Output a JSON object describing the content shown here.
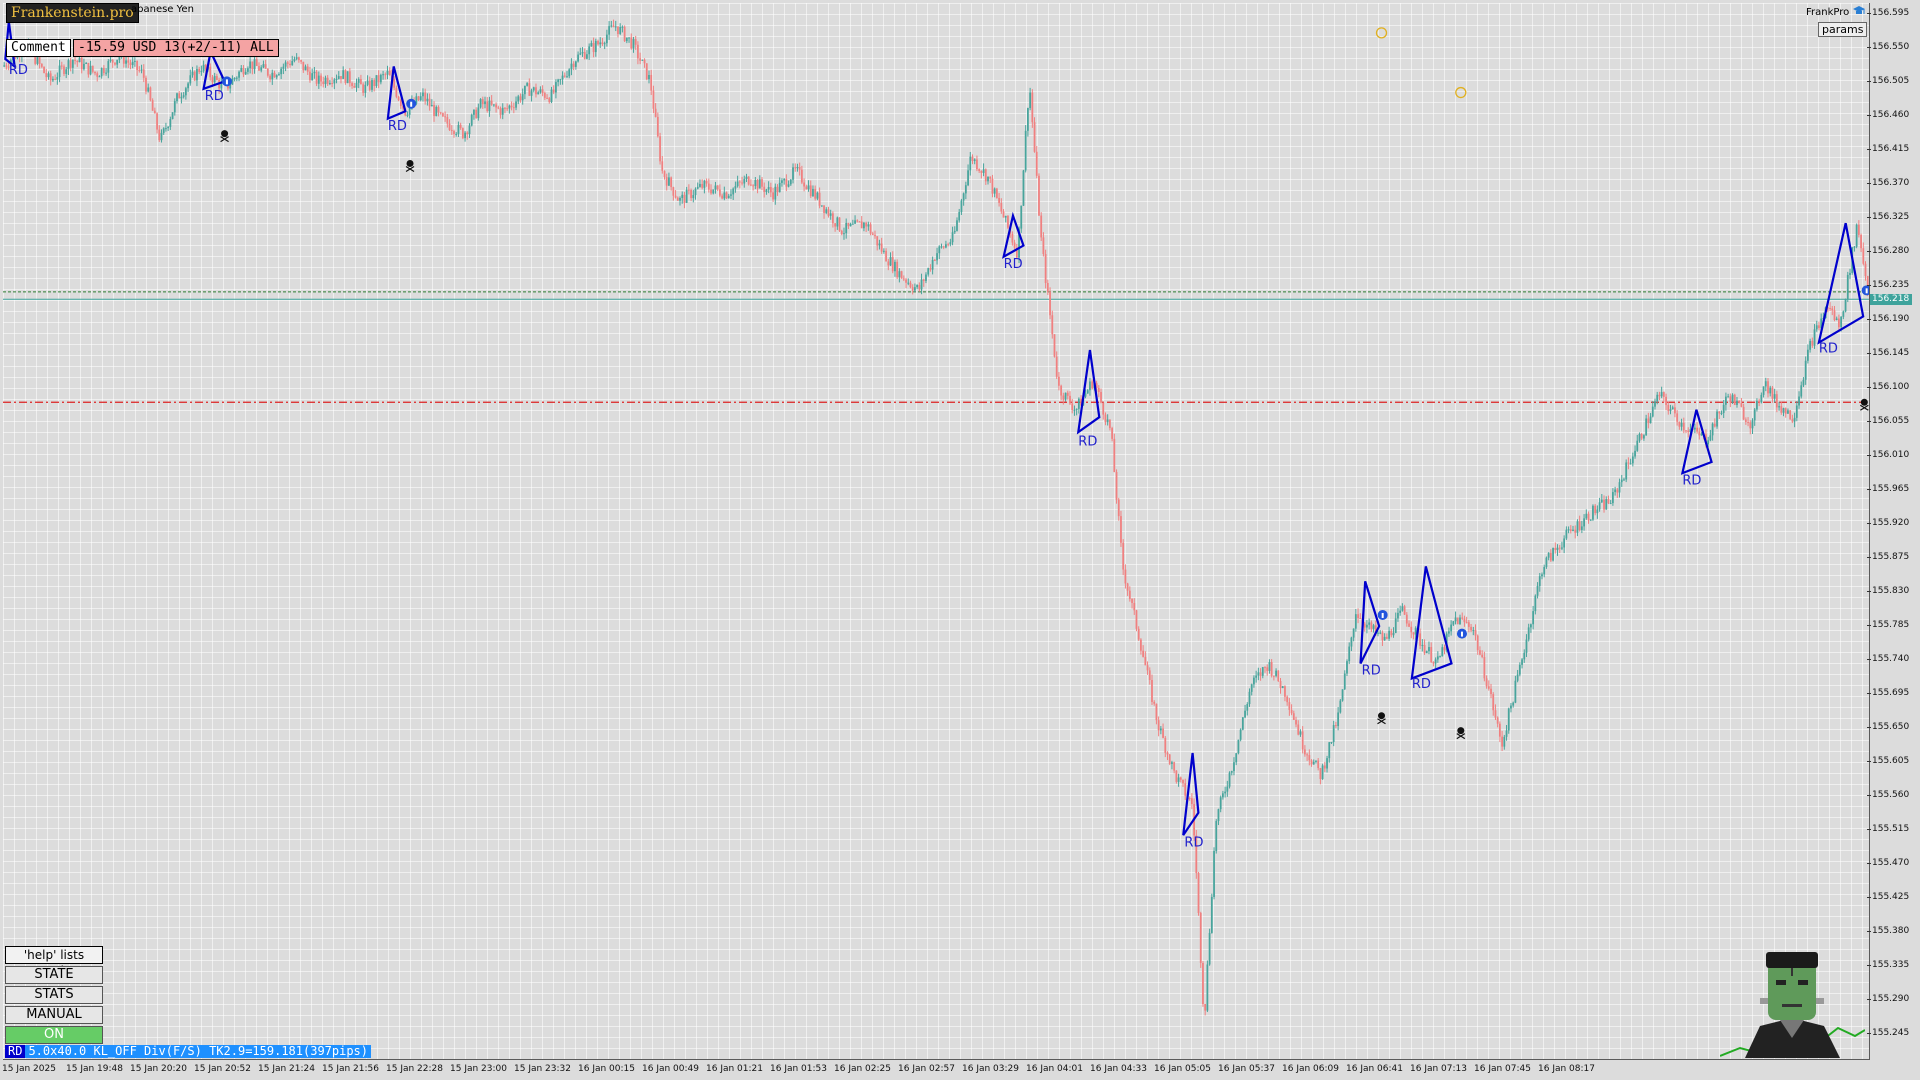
{
  "header": {
    "logo_text": "Frankenstein.pro",
    "symbol_title": "apanese Yen",
    "comment_label": "Comment",
    "pnl_text": "-15.59 USD 13(+2/-11) ALL",
    "ea_name": "FrankPro",
    "ea_cap_icon": "graduation-cap-icon",
    "params_label": "params"
  },
  "price_axis": {
    "ticks": [
      "156.595",
      "156.550",
      "156.505",
      "156.460",
      "156.415",
      "156.370",
      "156.325",
      "156.280",
      "156.235",
      "156.190",
      "156.145",
      "156.100",
      "156.055",
      "156.010",
      "155.965",
      "155.920",
      "155.875",
      "155.830",
      "155.785",
      "155.740",
      "155.695",
      "155.650",
      "155.605",
      "155.560",
      "155.515",
      "155.470",
      "155.425",
      "155.380",
      "155.335",
      "155.290",
      "155.245"
    ],
    "current_price": "156.218"
  },
  "time_axis": {
    "ticks": [
      "15 Jan 2025",
      "15 Jan 19:48",
      "15 Jan 20:20",
      "15 Jan 20:52",
      "15 Jan 21:24",
      "15 Jan 21:56",
      "15 Jan 22:28",
      "15 Jan 23:00",
      "15 Jan 23:32",
      "16 Jan 00:15",
      "16 Jan 00:49",
      "16 Jan 01:21",
      "16 Jan 01:53",
      "16 Jan 02:25",
      "16 Jan 02:57",
      "16 Jan 03:29",
      "16 Jan 04:01",
      "16 Jan 04:33",
      "16 Jan 05:05",
      "16 Jan 05:37",
      "16 Jan 06:09",
      "16 Jan 06:41",
      "16 Jan 07:13",
      "16 Jan 07:45",
      "16 Jan 08:17"
    ]
  },
  "chart_data": {
    "type": "candlestick",
    "ylim": [
      155.2,
      156.615
    ],
    "levels": {
      "bid_line": 156.218,
      "ask_line": 156.228,
      "stop_line": 156.08
    },
    "path_points": [
      [
        0,
        156.53
      ],
      [
        20,
        156.56
      ],
      [
        40,
        156.51
      ],
      [
        60,
        156.54
      ],
      [
        80,
        156.52
      ],
      [
        100,
        156.545
      ],
      [
        120,
        156.52
      ],
      [
        135,
        156.43
      ],
      [
        150,
        156.49
      ],
      [
        170,
        156.53
      ],
      [
        190,
        156.5
      ],
      [
        210,
        156.535
      ],
      [
        230,
        156.52
      ],
      [
        250,
        156.54
      ],
      [
        270,
        156.51
      ],
      [
        290,
        156.52
      ],
      [
        310,
        156.5
      ],
      [
        330,
        156.52
      ],
      [
        345,
        156.47
      ],
      [
        360,
        156.49
      ],
      [
        375,
        156.46
      ],
      [
        395,
        156.44
      ],
      [
        410,
        156.48
      ],
      [
        430,
        156.47
      ],
      [
        450,
        156.5
      ],
      [
        470,
        156.49
      ],
      [
        490,
        156.54
      ],
      [
        510,
        156.56
      ],
      [
        525,
        156.585
      ],
      [
        540,
        156.56
      ],
      [
        555,
        156.51
      ],
      [
        565,
        156.39
      ],
      [
        580,
        156.35
      ],
      [
        600,
        156.37
      ],
      [
        620,
        156.36
      ],
      [
        640,
        156.38
      ],
      [
        660,
        156.36
      ],
      [
        680,
        156.39
      ],
      [
        700,
        156.35
      ],
      [
        720,
        156.31
      ],
      [
        740,
        156.32
      ],
      [
        755,
        156.28
      ],
      [
        770,
        156.25
      ],
      [
        785,
        156.23
      ],
      [
        800,
        156.28
      ],
      [
        815,
        156.3
      ],
      [
        830,
        156.41
      ],
      [
        845,
        156.38
      ],
      [
        860,
        156.32
      ],
      [
        870,
        156.28
      ],
      [
        880,
        156.51
      ],
      [
        890,
        156.3
      ],
      [
        905,
        156.1
      ],
      [
        920,
        156.07
      ],
      [
        935,
        156.11
      ],
      [
        950,
        156.04
      ],
      [
        960,
        155.86
      ],
      [
        975,
        155.76
      ],
      [
        990,
        155.65
      ],
      [
        1005,
        155.58
      ],
      [
        1020,
        155.54
      ],
      [
        1030,
        155.25
      ],
      [
        1040,
        155.52
      ],
      [
        1055,
        155.6
      ],
      [
        1070,
        155.7
      ],
      [
        1085,
        155.73
      ],
      [
        1100,
        155.69
      ],
      [
        1115,
        155.62
      ],
      [
        1130,
        155.58
      ],
      [
        1145,
        155.66
      ],
      [
        1160,
        155.8
      ],
      [
        1170,
        155.78
      ],
      [
        1185,
        155.76
      ],
      [
        1200,
        155.8
      ],
      [
        1215,
        155.76
      ],
      [
        1230,
        155.73
      ],
      [
        1245,
        155.79
      ],
      [
        1260,
        155.78
      ],
      [
        1275,
        155.69
      ],
      [
        1285,
        155.62
      ],
      [
        1300,
        155.72
      ],
      [
        1320,
        155.86
      ],
      [
        1340,
        155.9
      ],
      [
        1360,
        155.93
      ],
      [
        1380,
        155.95
      ],
      [
        1400,
        156.02
      ],
      [
        1420,
        156.09
      ],
      [
        1440,
        156.05
      ],
      [
        1460,
        156.03
      ],
      [
        1480,
        156.09
      ],
      [
        1500,
        156.05
      ],
      [
        1510,
        156.11
      ],
      [
        1520,
        156.08
      ],
      [
        1535,
        156.06
      ],
      [
        1550,
        156.16
      ],
      [
        1565,
        156.21
      ],
      [
        1575,
        156.18
      ],
      [
        1590,
        156.32
      ],
      [
        1600,
        156.22
      ]
    ],
    "rd_patterns": [
      {
        "label": "RD",
        "pts": [
          [
            5,
            156.59
          ],
          [
            10,
            156.53
          ],
          [
            2,
            156.54
          ]
        ],
        "lx": 5,
        "ly": 156.52
      },
      {
        "label": "RD",
        "pts": [
          [
            178,
            156.55
          ],
          [
            190,
            156.51
          ],
          [
            172,
            156.5
          ]
        ],
        "lx": 173,
        "ly": 156.485
      },
      {
        "label": "RD",
        "pts": [
          [
            335,
            156.53
          ],
          [
            345,
            156.47
          ],
          [
            330,
            156.46
          ]
        ],
        "lx": 330,
        "ly": 156.445
      },
      {
        "label": "RD",
        "pts": [
          [
            866,
            156.33
          ],
          [
            875,
            156.29
          ],
          [
            858,
            156.275
          ]
        ],
        "lx": 858,
        "ly": 156.26
      },
      {
        "label": "RD",
        "pts": [
          [
            932,
            156.15
          ],
          [
            940,
            156.06
          ],
          [
            922,
            156.04
          ]
        ],
        "lx": 922,
        "ly": 156.022
      },
      {
        "label": "RD",
        "pts": [
          [
            1020,
            155.61
          ],
          [
            1025,
            155.53
          ],
          [
            1012,
            155.5
          ]
        ],
        "lx": 1013,
        "ly": 155.485
      },
      {
        "label": "RD",
        "pts": [
          [
            1168,
            155.84
          ],
          [
            1180,
            155.78
          ],
          [
            1164,
            155.73
          ]
        ],
        "lx": 1165,
        "ly": 155.715
      },
      {
        "label": "RD",
        "pts": [
          [
            1220,
            155.86
          ],
          [
            1242,
            155.73
          ],
          [
            1208,
            155.71
          ]
        ],
        "lx": 1208,
        "ly": 155.697
      },
      {
        "label": "RD",
        "pts": [
          [
            1452,
            156.07
          ],
          [
            1465,
            156.0
          ],
          [
            1440,
            155.985
          ]
        ],
        "lx": 1440,
        "ly": 155.97
      },
      {
        "label": "RD",
        "pts": [
          [
            1580,
            156.32
          ],
          [
            1595,
            156.195
          ],
          [
            1557,
            156.16
          ]
        ],
        "lx": 1557,
        "ly": 156.147
      }
    ],
    "skulls": [
      [
        190,
        156.44
      ],
      [
        349,
        156.4
      ],
      [
        1182,
        155.66
      ],
      [
        1250,
        155.64
      ],
      [
        1596,
        156.08
      ]
    ],
    "smileys": [
      [
        1182,
        156.575
      ],
      [
        1250,
        156.495
      ]
    ],
    "info_markers": [
      [
        192,
        156.51
      ],
      [
        350,
        156.48
      ],
      [
        1183,
        155.795
      ],
      [
        1251,
        155.77
      ],
      [
        1598,
        156.23
      ]
    ]
  },
  "control_panel": {
    "help_label": "'help' lists cmds",
    "buttons": [
      "STATE",
      "STATS",
      "MANUAL",
      "ON"
    ]
  },
  "status_bar": {
    "rd": "RD",
    "text": "5.0x40.0 KL_OFF Div(F/S) TK2.9=159.181(397pips)"
  },
  "colors": {
    "bull": "#48a49c",
    "bear": "#f08080",
    "pattern": "#0000cc",
    "bid_line": "#3ea39c",
    "stop_line": "#dd2222"
  },
  "mascot": "frankenstein-mascot-icon"
}
